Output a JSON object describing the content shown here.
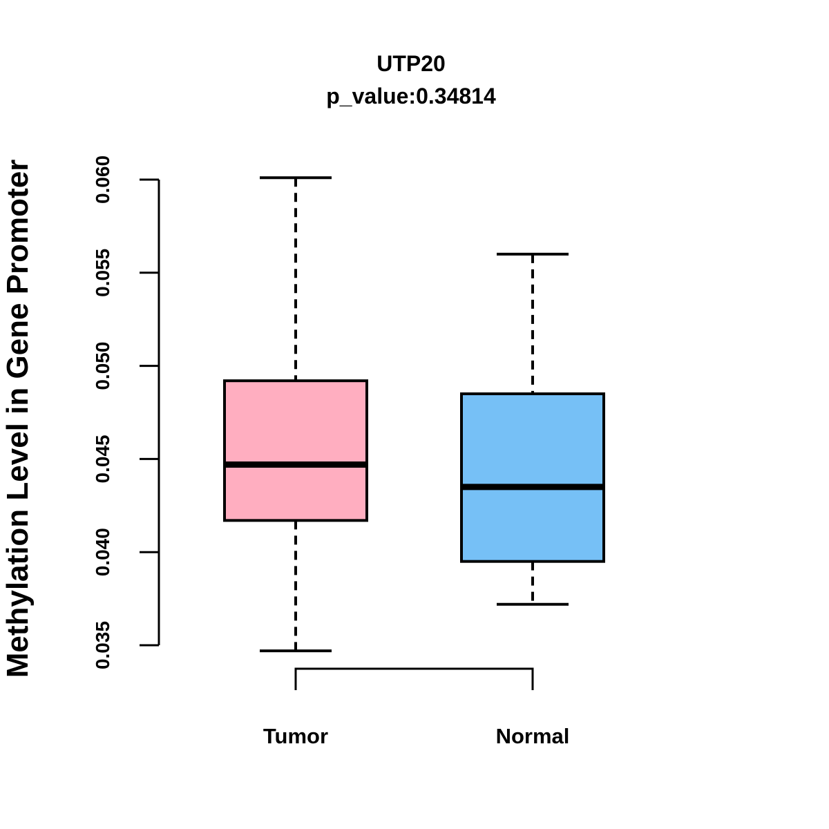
{
  "title": "UTP20",
  "subtitle": "p_value:0.34814",
  "p_value": "0.34814",
  "gene": "UTP20",
  "chart_data": {
    "type": "boxplot",
    "title": "UTP20",
    "subtitle": "p_value:0.34814",
    "ylabel": "Methylation Level in Gene Promoter",
    "xlabel": "",
    "categories": [
      "Tumor",
      "Normal"
    ],
    "ylim": [
      0.035,
      0.06
    ],
    "yticks": [
      0.06,
      0.055,
      0.05,
      0.045,
      0.04,
      0.035
    ],
    "ytick_labels": [
      "0.060",
      "0.055",
      "0.050",
      "0.045",
      "0.040",
      "0.035"
    ],
    "grid": "off",
    "legend": "none",
    "series": [
      {
        "name": "Tumor",
        "whisker_low": 0.0347,
        "q1": 0.0417,
        "median": 0.0447,
        "q3": 0.0492,
        "whisker_high": 0.0601,
        "fill_color": "#FFAEC0"
      },
      {
        "name": "Normal",
        "whisker_low": 0.0372,
        "q1": 0.0395,
        "median": 0.0435,
        "q3": 0.0485,
        "whisker_high": 0.056,
        "fill_color": "#76C0F6"
      }
    ],
    "annotations": {
      "comparison_bracket": "between Tumor and Normal group centers below axis"
    },
    "colors": {
      "line": "#000000",
      "background": "#FFFFFF",
      "tumor_fill": "#FFAEC0",
      "normal_fill": "#76C0F6"
    }
  }
}
